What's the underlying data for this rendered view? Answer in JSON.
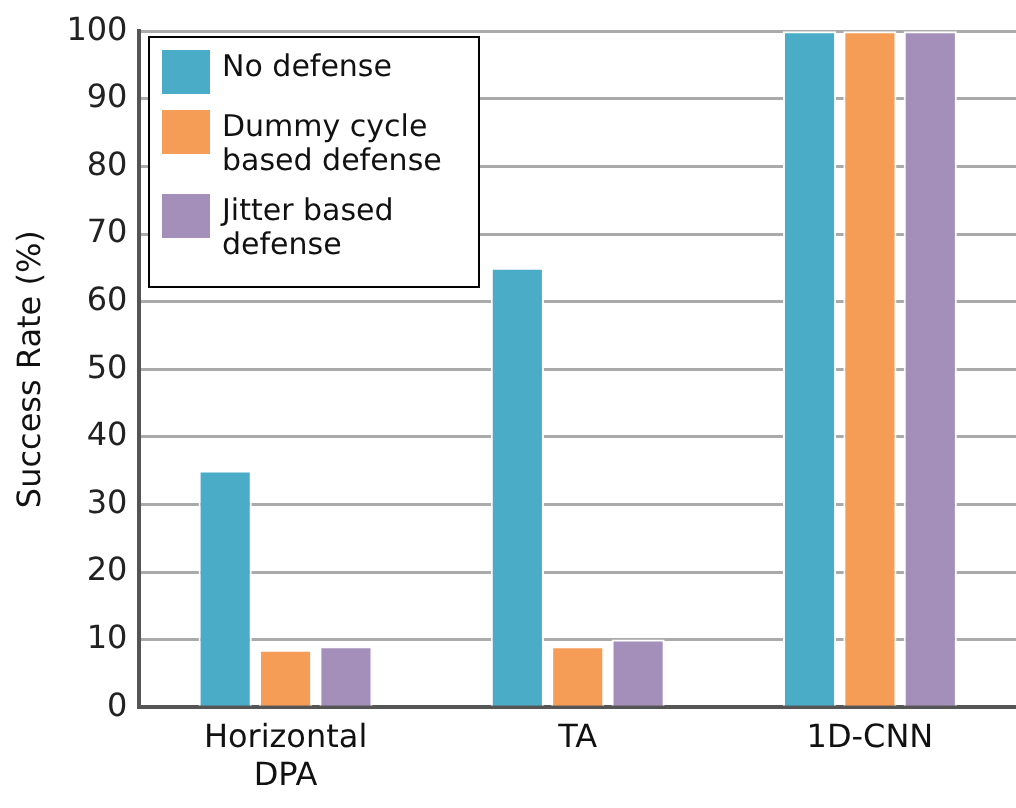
{
  "chart_data": {
    "type": "bar",
    "ylabel": "Success Rate (%)",
    "categories": [
      "Horizontal\nDPA",
      "TA",
      "1D-CNN"
    ],
    "series": [
      {
        "name": "No defense",
        "color": "#4aacc6",
        "values": [
          35,
          65,
          100
        ]
      },
      {
        "name": "Dummy cycle based defense",
        "color": "#f59d56",
        "values": [
          8.5,
          9,
          100
        ]
      },
      {
        "name": "Jitter based defense",
        "color": "#a48fbb",
        "values": [
          9,
          10,
          100
        ]
      }
    ],
    "ylim": [
      0,
      100
    ],
    "yticks": [
      0,
      10,
      20,
      30,
      40,
      50,
      60,
      70,
      80,
      90,
      100
    ],
    "grid": "y",
    "legend": "top left"
  }
}
